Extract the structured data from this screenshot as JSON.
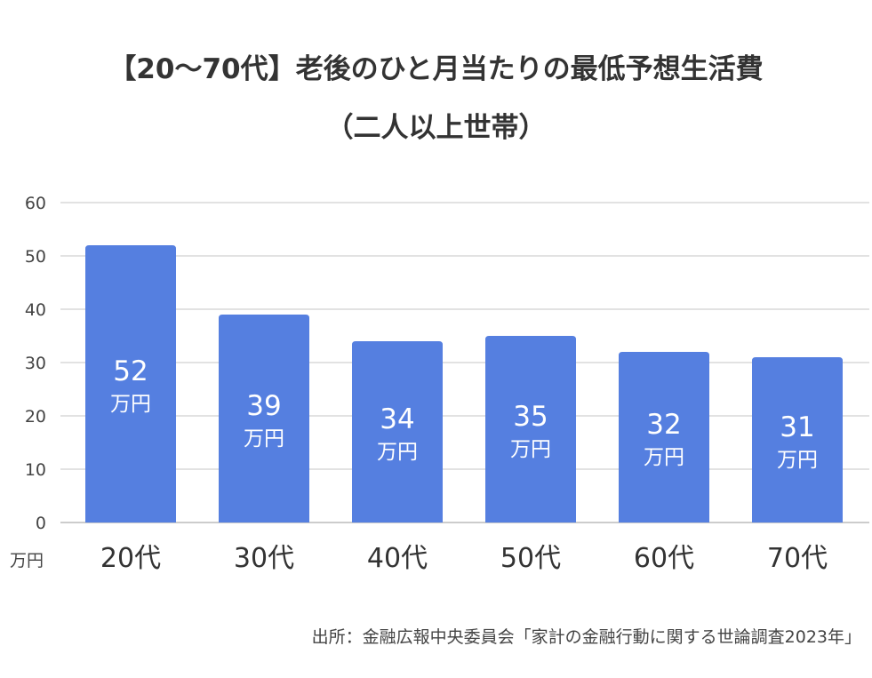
{
  "chart_data": {
    "type": "bar",
    "title": "【20〜70代】老後のひと月当たりの最低予想生活費",
    "subtitle": "（二人以上世帯）",
    "categories": [
      "20代",
      "30代",
      "40代",
      "50代",
      "60代",
      "70代"
    ],
    "values": [
      52,
      39,
      34,
      35,
      32,
      31
    ],
    "data_label_unit": "万円",
    "ylabel": "万円",
    "ylim": [
      0,
      60
    ],
    "yticks": [
      0,
      10,
      20,
      30,
      40,
      50,
      60
    ],
    "grid": true,
    "bar_color": "#557fe0",
    "source": "出所：金融広報中央委員会「家計の金融行動に関する世論調査2023年」"
  }
}
